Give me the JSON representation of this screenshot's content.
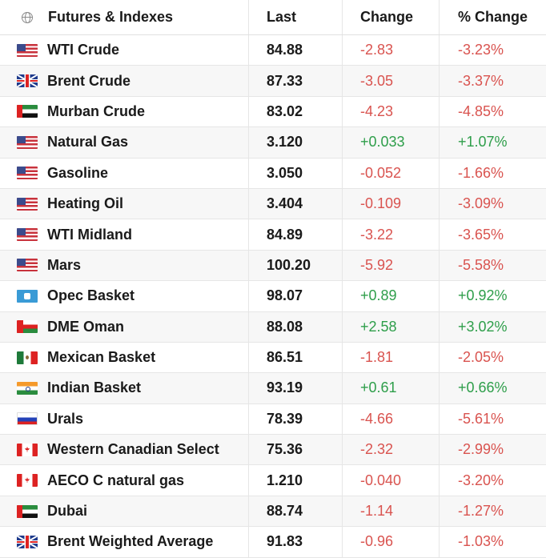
{
  "header": {
    "name": "Futures & Indexes",
    "last": "Last",
    "change": "Change",
    "pct_change": "% Change"
  },
  "rows": [
    {
      "flag": "us-flag-icon",
      "name": "WTI Crude",
      "last": "84.88",
      "change": "-2.83",
      "pct": "-3.23%"
    },
    {
      "flag": "uk-flag-icon",
      "name": "Brent Crude",
      "last": "87.33",
      "change": "-3.05",
      "pct": "-3.37%"
    },
    {
      "flag": "uae-flag-icon",
      "name": "Murban Crude",
      "last": "83.02",
      "change": "-4.23",
      "pct": "-4.85%"
    },
    {
      "flag": "us-flag-icon",
      "name": "Natural Gas",
      "last": "3.120",
      "change": "+0.033",
      "pct": "+1.07%"
    },
    {
      "flag": "us-flag-icon",
      "name": "Gasoline",
      "last": "3.050",
      "change": "-0.052",
      "pct": "-1.66%"
    },
    {
      "flag": "us-flag-icon",
      "name": "Heating Oil",
      "last": "3.404",
      "change": "-0.109",
      "pct": "-3.09%"
    },
    {
      "flag": "us-flag-icon",
      "name": "WTI Midland",
      "last": "84.89",
      "change": "-3.22",
      "pct": "-3.65%"
    },
    {
      "flag": "us-flag-icon",
      "name": "Mars",
      "last": "100.20",
      "change": "-5.92",
      "pct": "-5.58%"
    },
    {
      "flag": "opec-flag-icon",
      "name": "Opec Basket",
      "last": "98.07",
      "change": "+0.89",
      "pct": "+0.92%"
    },
    {
      "flag": "oman-flag-icon",
      "name": "DME Oman",
      "last": "88.08",
      "change": "+2.58",
      "pct": "+3.02%"
    },
    {
      "flag": "mexico-flag-icon",
      "name": "Mexican Basket",
      "last": "86.51",
      "change": "-1.81",
      "pct": "-2.05%"
    },
    {
      "flag": "india-flag-icon",
      "name": "Indian Basket",
      "last": "93.19",
      "change": "+0.61",
      "pct": "+0.66%"
    },
    {
      "flag": "russia-flag-icon",
      "name": "Urals",
      "last": "78.39",
      "change": "-4.66",
      "pct": "-5.61%"
    },
    {
      "flag": "canada-flag-icon",
      "name": "Western Canadian Select",
      "last": "75.36",
      "change": "-2.32",
      "pct": "-2.99%"
    },
    {
      "flag": "canada-flag-icon",
      "name": "AECO C natural gas",
      "last": "1.210",
      "change": "-0.040",
      "pct": "-3.20%"
    },
    {
      "flag": "uae-flag-icon",
      "name": "Dubai",
      "last": "88.74",
      "change": "-1.14",
      "pct": "-1.27%"
    },
    {
      "flag": "uk-flag-icon",
      "name": "Brent Weighted Average",
      "last": "91.83",
      "change": "-0.96",
      "pct": "-1.03%"
    }
  ],
  "colors": {
    "negative": "#d9534f",
    "positive": "#2e9e4a"
  }
}
